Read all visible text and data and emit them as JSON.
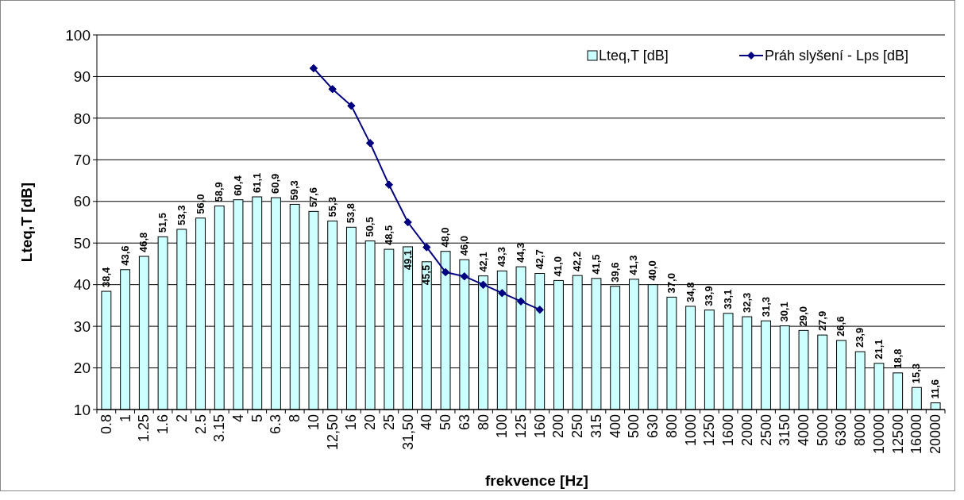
{
  "chart_data": {
    "type": "bar",
    "xlabel": "frekvence [Hz]",
    "ylabel": "Lteq,T [dB]",
    "categories": [
      "0.8",
      "1",
      "1.25",
      "1.6",
      "2",
      "2.5",
      "3.15",
      "4",
      "5",
      "6.3",
      "8",
      "10",
      "12,50",
      "16",
      "20",
      "25",
      "31,50",
      "40",
      "50",
      "63",
      "80",
      "100",
      "125",
      "160",
      "200",
      "250",
      "315",
      "400",
      "500",
      "630",
      "800",
      "1000",
      "1250",
      "1600",
      "2000",
      "2500",
      "3150",
      "4000",
      "5000",
      "6300",
      "8000",
      "10000",
      "12500",
      "16000",
      "20000"
    ],
    "series": [
      {
        "name": "Lteq,T [dB]",
        "color": "#ccffff",
        "values": [
          38.4,
          43.6,
          46.8,
          51.5,
          53.3,
          56.0,
          58.9,
          60.4,
          61.1,
          60.9,
          59.3,
          57.6,
          55.3,
          53.8,
          50.5,
          48.5,
          49.1,
          45.5,
          48.0,
          46.0,
          42.1,
          43.3,
          44.3,
          42.7,
          41.0,
          42.2,
          41.5,
          39.6,
          41.3,
          40.0,
          37.0,
          34.8,
          33.9,
          33.1,
          32.3,
          31.3,
          30.1,
          29.0,
          27.9,
          26.6,
          23.9,
          21.1,
          18.8,
          15.3,
          11.6
        ],
        "value_labels": [
          "38,4",
          "43,6",
          "46,8",
          "51,5",
          "53,3",
          "56,0",
          "58,9",
          "60,4",
          "61,1",
          "60,9",
          "59,3",
          "57,6",
          "55,3",
          "53,8",
          "50,5",
          "48,5",
          "49,1",
          "45,5",
          "48,0",
          "46,0",
          "42,1",
          "43,3",
          "44,3",
          "42,7",
          "41,0",
          "42,2",
          "41,5",
          "39,6",
          "41,3",
          "40,0",
          "37,0",
          "34,8",
          "33,9",
          "33,1",
          "32,3",
          "31,3",
          "30,1",
          "29,0",
          "27,9",
          "26,6",
          "23,9",
          "21,1",
          "18,8",
          "15,3",
          "11,6"
        ]
      },
      {
        "name": "Práh slyšení - Lps [dB]",
        "type": "line",
        "color": "#000080",
        "marker": "diamond",
        "values": [
          null,
          null,
          null,
          null,
          null,
          null,
          null,
          null,
          null,
          null,
          null,
          92,
          87,
          83,
          74,
          64,
          55,
          49,
          43,
          42,
          40,
          38,
          36,
          34,
          null,
          null,
          null,
          null,
          null,
          null,
          null,
          null,
          null,
          null,
          null,
          null,
          null,
          null,
          null,
          null,
          null,
          null,
          null,
          null,
          null
        ]
      }
    ],
    "ylim": [
      10,
      100
    ],
    "yticks": [
      10,
      20,
      30,
      40,
      50,
      60,
      70,
      80,
      90,
      100
    ],
    "grid": "y",
    "legend": "top right"
  }
}
